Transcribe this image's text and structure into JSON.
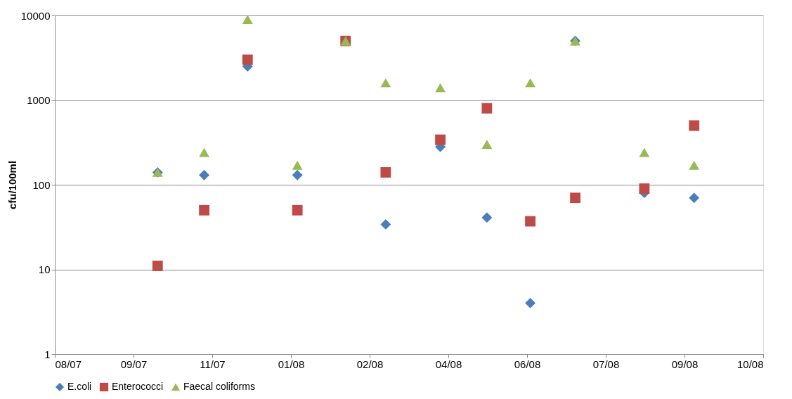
{
  "chart_data": {
    "type": "scatter",
    "ylabel": "cfu/100ml",
    "log": "y",
    "grid": "y",
    "legend": "bottom",
    "x": [
      "2007-10-15",
      "2007-11-13",
      "2007-12-10",
      "2008-01-10",
      "2008-02-09",
      "2008-03-05",
      "2008-04-08",
      "2008-05-07",
      "2008-06-03",
      "2008-07-01",
      "2008-08-13",
      "2008-09-13"
    ],
    "xlim": [
      "2007-08-12",
      "2008-10-26"
    ],
    "xticks": [
      {
        "value": "2007-08-12",
        "label": "08/07"
      },
      {
        "value": "2007-09-30",
        "label": "09/07"
      },
      {
        "value": "2007-11-18",
        "label": "11/07"
      },
      {
        "value": "2008-01-06",
        "label": "01/08"
      },
      {
        "value": "2008-02-24",
        "label": "02/08"
      },
      {
        "value": "2008-04-13",
        "label": "04/08"
      },
      {
        "value": "2008-06-01",
        "label": "06/08"
      },
      {
        "value": "2008-07-20",
        "label": "07/08"
      },
      {
        "value": "2008-09-07",
        "label": "09/08"
      },
      {
        "value": "2008-10-26",
        "label": "10/08"
      }
    ],
    "ylim": [
      1,
      10000
    ],
    "yticks": [
      1,
      10,
      100,
      1000,
      10000
    ],
    "series": [
      {
        "name": "E.coli",
        "color": "#4a7ebb",
        "marker": "diamond",
        "values": [
          140,
          130,
          2500,
          130,
          null,
          34,
          280,
          41,
          4,
          5000,
          80,
          70
        ]
      },
      {
        "name": "Enterococci",
        "color": "#be4b48",
        "marker": "square",
        "values": [
          11,
          50,
          3000,
          50,
          5000,
          140,
          340,
          800,
          37,
          70,
          90,
          500
        ]
      },
      {
        "name": "Faecal coliforms",
        "color": "#98b954",
        "marker": "triangle",
        "values": [
          140,
          240,
          9000,
          170,
          5000,
          1600,
          1400,
          300,
          1600,
          5000,
          240,
          170
        ]
      }
    ]
  }
}
